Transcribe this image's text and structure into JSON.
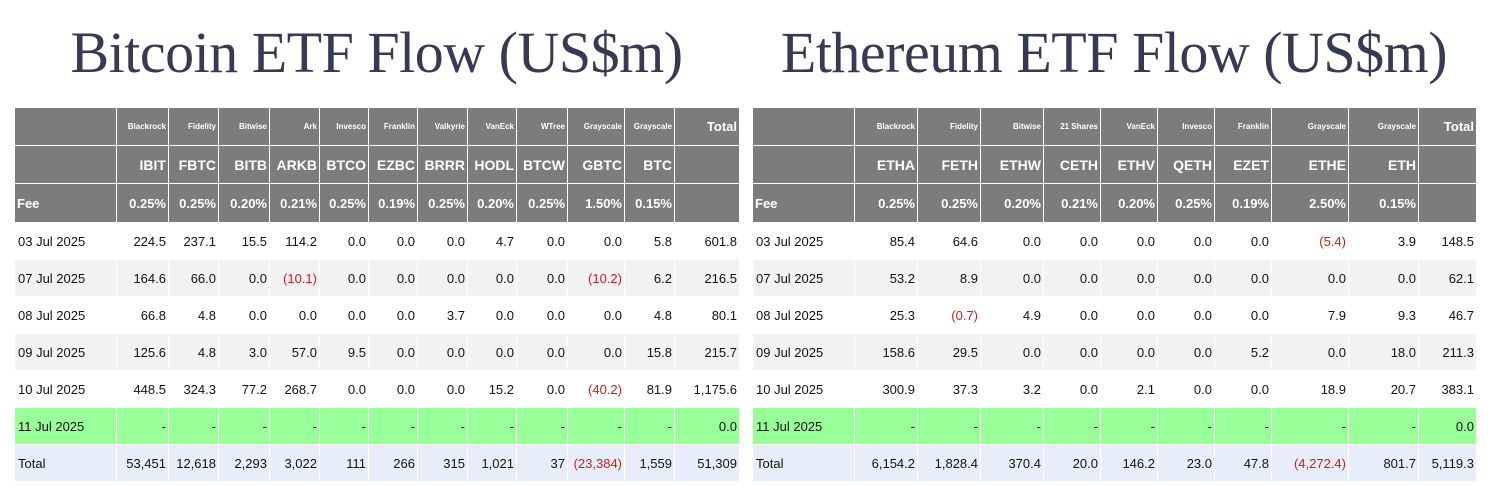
{
  "btc": {
    "title": "Bitcoin ETF Flow (US$m)",
    "issuers": [
      "Blackrock",
      "Fidelity",
      "Bitwise",
      "Ark",
      "Invesco",
      "Franklin",
      "Valkyrie",
      "VanEck",
      "WTree",
      "Grayscale",
      "Grayscale"
    ],
    "tickers": [
      "IBIT",
      "FBTC",
      "BITB",
      "ARKB",
      "BTCO",
      "EZBC",
      "BRRR",
      "HODL",
      "BTCW",
      "GBTC",
      "BTC"
    ],
    "fee_label": "Fee",
    "fees": [
      "0.25%",
      "0.25%",
      "0.20%",
      "0.21%",
      "0.25%",
      "0.19%",
      "0.25%",
      "0.20%",
      "0.25%",
      "1.50%",
      "0.15%"
    ],
    "total_label": "Total",
    "rows": [
      {
        "date": "03 Jul 2025",
        "values": [
          "224.5",
          "237.1",
          "15.5",
          "114.2",
          "0.0",
          "0.0",
          "0.0",
          "4.7",
          "0.0",
          "0.0",
          "5.8"
        ],
        "total": "601.8"
      },
      {
        "date": "07 Jul 2025",
        "values": [
          "164.6",
          "66.0",
          "0.0",
          "(10.1)",
          "0.0",
          "0.0",
          "0.0",
          "0.0",
          "0.0",
          "(10.2)",
          "6.2"
        ],
        "total": "216.5"
      },
      {
        "date": "08 Jul 2025",
        "values": [
          "66.8",
          "4.8",
          "0.0",
          "0.0",
          "0.0",
          "0.0",
          "3.7",
          "0.0",
          "0.0",
          "0.0",
          "4.8"
        ],
        "total": "80.1"
      },
      {
        "date": "09 Jul 2025",
        "values": [
          "125.6",
          "4.8",
          "3.0",
          "57.0",
          "9.5",
          "0.0",
          "0.0",
          "0.0",
          "0.0",
          "0.0",
          "15.8"
        ],
        "total": "215.7"
      },
      {
        "date": "10 Jul 2025",
        "values": [
          "448.5",
          "324.3",
          "77.2",
          "268.7",
          "0.0",
          "0.0",
          "0.0",
          "15.2",
          "0.0",
          "(40.2)",
          "81.9"
        ],
        "total": "1,175.6"
      },
      {
        "date": "11 Jul 2025",
        "values": [
          "-",
          "-",
          "-",
          "-",
          "-",
          "-",
          "-",
          "-",
          "-",
          "-",
          "-"
        ],
        "total": "0.0"
      }
    ],
    "totals_label": "Total",
    "totals": [
      "53,451",
      "12,618",
      "2,293",
      "3,022",
      "111",
      "266",
      "315",
      "1,021",
      "37",
      "(23,384)",
      "1,559"
    ],
    "grand_total": "51,309"
  },
  "eth": {
    "title": "Ethereum ETF Flow (US$m)",
    "issuers": [
      "Blackrock",
      "Fidelity",
      "Bitwise",
      "21 Shares",
      "VanEck",
      "Invesco",
      "Franklin",
      "Grayscale",
      "Grayscale"
    ],
    "tickers": [
      "ETHA",
      "FETH",
      "ETHW",
      "CETH",
      "ETHV",
      "QETH",
      "EZET",
      "ETHE",
      "ETH"
    ],
    "fee_label": "Fee",
    "fees": [
      "0.25%",
      "0.25%",
      "0.20%",
      "0.21%",
      "0.20%",
      "0.25%",
      "0.19%",
      "2.50%",
      "0.15%"
    ],
    "total_label": "Total",
    "rows": [
      {
        "date": "03 Jul 2025",
        "values": [
          "85.4",
          "64.6",
          "0.0",
          "0.0",
          "0.0",
          "0.0",
          "0.0",
          "(5.4)",
          "3.9"
        ],
        "total": "148.5"
      },
      {
        "date": "07 Jul 2025",
        "values": [
          "53.2",
          "8.9",
          "0.0",
          "0.0",
          "0.0",
          "0.0",
          "0.0",
          "0.0",
          "0.0"
        ],
        "total": "62.1"
      },
      {
        "date": "08 Jul 2025",
        "values": [
          "25.3",
          "(0.7)",
          "4.9",
          "0.0",
          "0.0",
          "0.0",
          "0.0",
          "7.9",
          "9.3"
        ],
        "total": "46.7"
      },
      {
        "date": "09 Jul 2025",
        "values": [
          "158.6",
          "29.5",
          "0.0",
          "0.0",
          "0.0",
          "0.0",
          "5.2",
          "0.0",
          "18.0"
        ],
        "total": "211.3"
      },
      {
        "date": "10 Jul 2025",
        "values": [
          "300.9",
          "37.3",
          "3.2",
          "0.0",
          "2.1",
          "0.0",
          "0.0",
          "18.9",
          "20.7"
        ],
        "total": "383.1"
      },
      {
        "date": "11 Jul 2025",
        "values": [
          "-",
          "-",
          "-",
          "-",
          "-",
          "-",
          "-",
          "-",
          "-"
        ],
        "total": "0.0"
      }
    ],
    "totals_label": "Total",
    "totals": [
      "6,154.2",
      "1,828.4",
      "370.4",
      "20.0",
      "146.2",
      "23.0",
      "47.8",
      "(4,272.4)",
      "801.7"
    ],
    "grand_total": "5,119.3"
  },
  "colors": {
    "header_bg": "#7c7c7c",
    "row_alt": "#f2f2f2",
    "latest_row": "#99ff99",
    "totals_row": "#e8eef9",
    "negative": "#d41a1a",
    "title": "#363a52"
  }
}
